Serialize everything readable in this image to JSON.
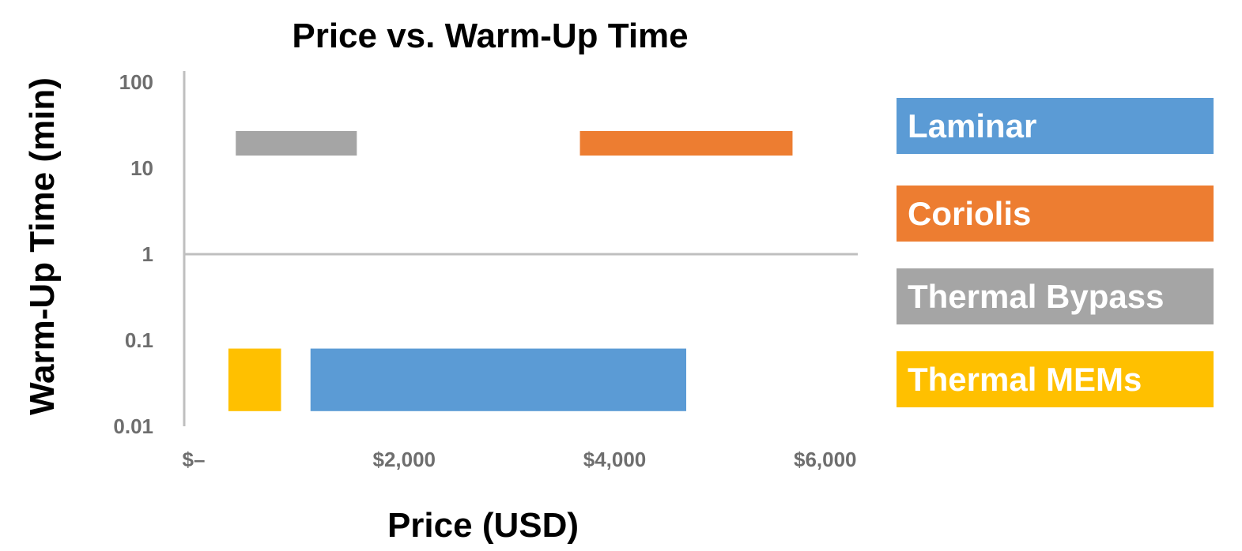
{
  "chart_data": {
    "type": "bar",
    "orientation": "floating-range",
    "title": "Price vs. Warm-Up Time",
    "xlabel": "Price (USD)",
    "ylabel": "Warm-Up Time  (min)",
    "y_scale": "log",
    "xlim": [
      0,
      6400
    ],
    "ylim": [
      0.01,
      150
    ],
    "x_ticks": [
      {
        "value": 0,
        "label": "$–"
      },
      {
        "value": 2000,
        "label": "$2,000"
      },
      {
        "value": 4000,
        "label": "$4,000"
      },
      {
        "value": 6000,
        "label": "$6,000"
      }
    ],
    "y_ticks": [
      {
        "value": 100,
        "label": "100"
      },
      {
        "value": 10,
        "label": "10"
      },
      {
        "value": 1,
        "label": "1"
      },
      {
        "value": 0.1,
        "label": "0.1"
      },
      {
        "value": 0.01,
        "label": "0.01"
      }
    ],
    "grid": false,
    "legend_position": "right",
    "series": [
      {
        "name": "Laminar",
        "color": "#5B9BD5",
        "price_range": [
          1200,
          4770
        ],
        "time_range": [
          0.015,
          0.08
        ]
      },
      {
        "name": "Coriolis",
        "color": "#ED7D31",
        "price_range": [
          3760,
          5780
        ],
        "time_range": [
          14,
          27
        ]
      },
      {
        "name": "Thermal Bypass",
        "color": "#A5A5A5",
        "price_range": [
          490,
          1640
        ],
        "time_range": [
          14,
          27
        ]
      },
      {
        "name": "Thermal MEMs",
        "color": "#FFC000",
        "price_range": [
          420,
          920
        ],
        "time_range": [
          0.015,
          0.08
        ]
      }
    ]
  }
}
